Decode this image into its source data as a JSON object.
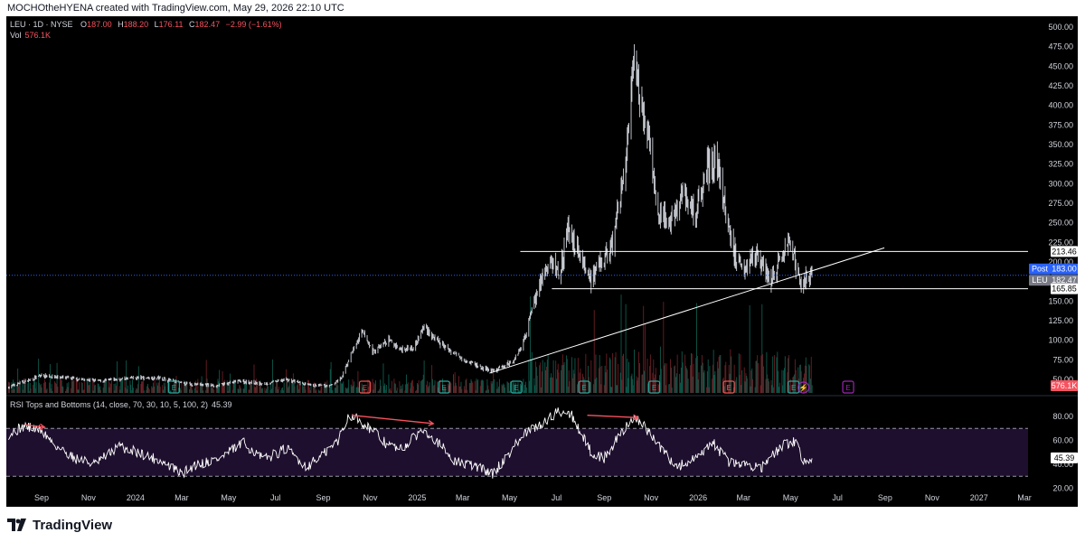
{
  "header": {
    "credit": "MOCHOtheHYENA created with TradingView.com, May 29, 2026 22:10 UTC"
  },
  "legend": {
    "symbol": "LEU · 1D · NYSE",
    "o_label": "O",
    "o": "187.00",
    "h_label": "H",
    "h": "188.20",
    "l_label": "L",
    "l": "176.11",
    "c_label": "C",
    "c": "182.47",
    "change": "−2.99 (−1.61%)",
    "vol_label": "Vol",
    "vol": "576.1K"
  },
  "colors": {
    "background": "#000000",
    "candle": "#d1d4dc",
    "line": "#ffffff",
    "post": "#2962ff",
    "leu": "#787b86",
    "rsi_fill": "#1e0f2e",
    "arrow": "#f7525f",
    "earnings": "#26a69a",
    "earnings_red": "#ef5350",
    "dividend": "#9c27b0",
    "vol_up": "#0f5a4c",
    "vol_down": "#6b1f25"
  },
  "chart_data": {
    "type": "candlestick",
    "symbol": "LEU",
    "interval": "1D",
    "exchange": "NYSE",
    "ylim": [
      20,
      510
    ],
    "y_ticks": [
      50,
      75,
      100,
      125,
      150,
      175,
      200,
      225,
      250,
      275,
      300,
      325,
      350,
      375,
      400,
      425,
      450,
      475,
      500
    ],
    "y_tick_labels": [
      "50.00",
      "75.00",
      "100.00",
      "125.00",
      "150.00",
      "175.00",
      "200.00",
      "225.00",
      "250.00",
      "275.00",
      "300.00",
      "325.00",
      "350.00",
      "375.00",
      "400.00",
      "425.00",
      "450.00",
      "475.00",
      "500.00"
    ],
    "x_axis_labels": [
      "Sep",
      "Nov",
      "2024",
      "Mar",
      "May",
      "Jul",
      "Sep",
      "Nov",
      "2025",
      "Mar",
      "May",
      "Jul",
      "Sep",
      "Nov",
      "2026",
      "Mar",
      "May",
      "Jul",
      "Sep",
      "Nov",
      "2027",
      "Mar"
    ],
    "x_axis_dates": [
      "2023-09-01",
      "2023-11-01",
      "2024-01-01",
      "2024-03-01",
      "2024-05-01",
      "2024-07-01",
      "2024-09-01",
      "2024-11-01",
      "2025-01-01",
      "2025-03-01",
      "2025-05-01",
      "2025-07-01",
      "2025-09-01",
      "2025-11-01",
      "2026-01-01",
      "2026-03-01",
      "2026-05-01",
      "2026-07-01",
      "2026-09-01",
      "2026-11-01",
      "2027-01-01",
      "2027-03-01"
    ],
    "price_path": [
      [
        "2023-07-20",
        40
      ],
      [
        "2023-09-01",
        55
      ],
      [
        "2023-10-01",
        52
      ],
      [
        "2023-11-15",
        48
      ],
      [
        "2024-01-01",
        52
      ],
      [
        "2024-02-01",
        52
      ],
      [
        "2024-03-01",
        45
      ],
      [
        "2024-04-15",
        42
      ],
      [
        "2024-05-15",
        48
      ],
      [
        "2024-06-15",
        44
      ],
      [
        "2024-07-15",
        50
      ],
      [
        "2024-08-15",
        42
      ],
      [
        "2024-09-10",
        42
      ],
      [
        "2024-09-25",
        52
      ],
      [
        "2024-10-08",
        85
      ],
      [
        "2024-10-22",
        110
      ],
      [
        "2024-11-05",
        85
      ],
      [
        "2024-11-25",
        100
      ],
      [
        "2024-12-10",
        88
      ],
      [
        "2024-12-28",
        92
      ],
      [
        "2025-01-10",
        118
      ],
      [
        "2025-01-25",
        100
      ],
      [
        "2025-02-15",
        85
      ],
      [
        "2025-03-05",
        75
      ],
      [
        "2025-03-25",
        65
      ],
      [
        "2025-04-10",
        60
      ],
      [
        "2025-04-25",
        68
      ],
      [
        "2025-05-05",
        72
      ],
      [
        "2025-05-20",
        100
      ],
      [
        "2025-06-01",
        150
      ],
      [
        "2025-06-15",
        185
      ],
      [
        "2025-06-25",
        200
      ],
      [
        "2025-07-05",
        185
      ],
      [
        "2025-07-15",
        240
      ],
      [
        "2025-08-01",
        210
      ],
      [
        "2025-08-15",
        175
      ],
      [
        "2025-08-28",
        200
      ],
      [
        "2025-09-10",
        215
      ],
      [
        "2025-09-25",
        300
      ],
      [
        "2025-10-05",
        390
      ],
      [
        "2025-10-10",
        450
      ],
      [
        "2025-10-20",
        400
      ],
      [
        "2025-11-01",
        330
      ],
      [
        "2025-11-10",
        260
      ],
      [
        "2025-11-25",
        250
      ],
      [
        "2025-12-05",
        270
      ],
      [
        "2025-12-15",
        290
      ],
      [
        "2025-12-28",
        255
      ],
      [
        "2026-01-10",
        320
      ],
      [
        "2026-01-25",
        330
      ],
      [
        "2026-02-05",
        270
      ],
      [
        "2026-02-15",
        215
      ],
      [
        "2026-03-01",
        195
      ],
      [
        "2026-03-15",
        210
      ],
      [
        "2026-03-25",
        200
      ],
      [
        "2026-04-05",
        175
      ],
      [
        "2026-04-20",
        205
      ],
      [
        "2026-05-01",
        225
      ],
      [
        "2026-05-08",
        195
      ],
      [
        "2026-05-15",
        172
      ],
      [
        "2026-05-22",
        180
      ],
      [
        "2026-05-29",
        182.47
      ]
    ],
    "lines": {
      "resistance": 213.46,
      "support": 165.85,
      "post_price": 183.0,
      "last_price": 182.47,
      "trendline": [
        [
          "2025-04-05",
          58
        ],
        [
          "2026-08-31",
          218
        ]
      ]
    },
    "price_labels": {
      "resistance": "213.46",
      "post_tag": "Post",
      "post_price": "183.00",
      "leu_tag": "LEU",
      "last_price": "182.47",
      "support": "165.85"
    },
    "volume": {
      "last": "576.1K"
    },
    "events": [
      {
        "date": "2024-02-20",
        "type": "E",
        "color": "earnings"
      },
      {
        "date": "2024-10-25",
        "type": "E",
        "color": "earnings_red"
      },
      {
        "date": "2025-02-05",
        "type": "E",
        "color": "earnings"
      },
      {
        "date": "2025-05-10",
        "type": "E",
        "color": "earnings"
      },
      {
        "date": "2025-08-06",
        "type": "E",
        "color": "earnings"
      },
      {
        "date": "2025-11-05",
        "type": "E",
        "color": "earnings"
      },
      {
        "date": "2026-02-10",
        "type": "E",
        "color": "earnings_red"
      },
      {
        "date": "2026-05-05",
        "type": "E",
        "color": "earnings"
      },
      {
        "date": "2026-05-18",
        "type": "⚡",
        "color": "dividend"
      },
      {
        "date": "2026-07-15",
        "type": "E",
        "color": "dividend"
      }
    ],
    "rsi": {
      "title": "RSI Tops and Bottoms (14, close, 70, 30, 10, 5, 100, 2)",
      "value": "45.39",
      "last_label": "45.39",
      "ylim": [
        20,
        95
      ],
      "y_ticks": [
        20,
        40,
        60,
        80
      ],
      "y_tick_labels": [
        "20.00",
        "40.00",
        "60.00",
        "80.00"
      ],
      "upper_band": 70,
      "lower_band": 30,
      "path": [
        [
          "2023-07-20",
          65
        ],
        [
          "2023-08-10",
          72
        ],
        [
          "2023-09-01",
          68
        ],
        [
          "2023-09-20",
          55
        ],
        [
          "2023-10-15",
          45
        ],
        [
          "2023-11-10",
          40
        ],
        [
          "2023-12-10",
          55
        ],
        [
          "2024-01-05",
          50
        ],
        [
          "2024-02-05",
          42
        ],
        [
          "2024-03-01",
          32
        ],
        [
          "2024-03-20",
          40
        ],
        [
          "2024-04-20",
          45
        ],
        [
          "2024-05-20",
          58
        ],
        [
          "2024-06-15",
          44
        ],
        [
          "2024-07-15",
          53
        ],
        [
          "2024-08-10",
          38
        ],
        [
          "2024-09-01",
          48
        ],
        [
          "2024-09-20",
          60
        ],
        [
          "2024-10-05",
          82
        ],
        [
          "2024-10-15",
          78
        ],
        [
          "2024-11-01",
          70
        ],
        [
          "2024-11-20",
          58
        ],
        [
          "2024-12-10",
          52
        ],
        [
          "2025-01-10",
          70
        ],
        [
          "2025-01-25",
          60
        ],
        [
          "2025-02-20",
          42
        ],
        [
          "2025-03-20",
          38
        ],
        [
          "2025-04-10",
          32
        ],
        [
          "2025-05-01",
          50
        ],
        [
          "2025-05-20",
          65
        ],
        [
          "2025-06-15",
          75
        ],
        [
          "2025-07-05",
          85
        ],
        [
          "2025-07-20",
          82
        ],
        [
          "2025-08-15",
          50
        ],
        [
          "2025-09-01",
          45
        ],
        [
          "2025-09-25",
          68
        ],
        [
          "2025-10-10",
          80
        ],
        [
          "2025-10-25",
          70
        ],
        [
          "2025-11-15",
          52
        ],
        [
          "2025-12-05",
          38
        ],
        [
          "2026-01-01",
          45
        ],
        [
          "2026-01-20",
          58
        ],
        [
          "2026-02-10",
          42
        ],
        [
          "2026-03-01",
          40
        ],
        [
          "2026-03-25",
          38
        ],
        [
          "2026-04-20",
          55
        ],
        [
          "2026-05-08",
          60
        ],
        [
          "2026-05-18",
          42
        ],
        [
          "2026-05-29",
          45.39
        ]
      ],
      "divergence_arrows": [
        {
          "from": [
            "2023-08-10",
            73
          ],
          "to": [
            "2023-09-05",
            71
          ]
        },
        {
          "from": [
            "2024-10-08",
            81
          ],
          "to": [
            "2025-01-22",
            74
          ]
        },
        {
          "from": [
            "2025-08-10",
            81
          ],
          "to": [
            "2025-10-15",
            79
          ]
        }
      ]
    }
  },
  "footer": {
    "brand": "TradingView"
  }
}
